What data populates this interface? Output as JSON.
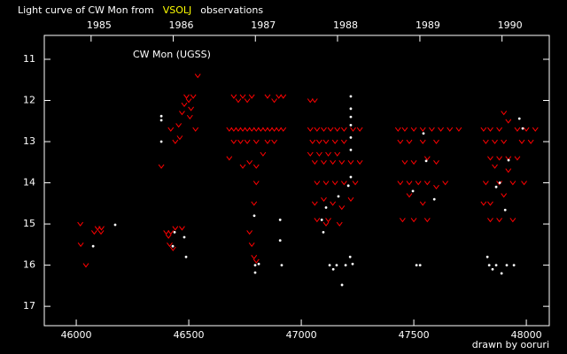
{
  "chart_data": {
    "type": "scatter",
    "title": [
      "Light curve of CW Mon from",
      "VSOLJ",
      "observations"
    ],
    "title_colors": [
      "#ffffff",
      "#ffff00",
      "#ffffff"
    ],
    "annotation": "CW Mon (UGSS)",
    "credit": "drawn by ooruri",
    "credit_color": "#33ccdd",
    "axis_color": "#ffffff",
    "xlim": [
      45858,
      48102
    ],
    "ylim": [
      10.42,
      17.47
    ],
    "y_inverted": true,
    "xticks": [
      46000,
      46500,
      47000,
      47500,
      48000
    ],
    "yticks": [
      11,
      12,
      13,
      14,
      15,
      16,
      17
    ],
    "top_ticks": [
      {
        "value": 46066,
        "label": "1985"
      },
      {
        "value": 46431,
        "label": "1986"
      },
      {
        "value": 46796,
        "label": "1987"
      },
      {
        "value": 47161,
        "label": "1988"
      },
      {
        "value": 47527,
        "label": "1989"
      },
      {
        "value": 47892,
        "label": "1990"
      }
    ],
    "series": [
      {
        "color": "#ff0000",
        "marker": "v",
        "x": [
          46018,
          46020,
          46043,
          46080,
          46095,
          46110,
          46112,
          46378,
          46400,
          46410,
          46420,
          46415,
          46430,
          46440,
          46470,
          46420,
          46440,
          46460,
          46455,
          46470,
          46480,
          46490,
          46500,
          46505,
          46510,
          46520,
          46530,
          46540,
          46700,
          46720,
          46740,
          46760,
          46780,
          46680,
          46700,
          46720,
          46740,
          46760,
          46780,
          46800,
          46820,
          46840,
          46860,
          46880,
          46900,
          46920,
          46700,
          46730,
          46760,
          46800,
          46850,
          46880,
          46680,
          46740,
          46770,
          46800,
          46830,
          46790,
          46800,
          46770,
          46780,
          46790,
          46800,
          46850,
          46880,
          46900,
          46920,
          47040,
          47060,
          47040,
          47070,
          47100,
          47130,
          47160,
          47190,
          47230,
          47260,
          47050,
          47080,
          47110,
          47150,
          47190,
          47040,
          47080,
          47120,
          47160,
          47060,
          47100,
          47140,
          47180,
          47220,
          47260,
          47070,
          47110,
          47150,
          47190,
          47240,
          47060,
          47100,
          47140,
          47180,
          47220,
          47070,
          47120,
          47170,
          47110,
          47430,
          47460,
          47500,
          47540,
          47580,
          47620,
          47660,
          47700,
          47440,
          47480,
          47540,
          47600,
          47460,
          47500,
          47560,
          47600,
          47440,
          47480,
          47520,
          47560,
          47600,
          47640,
          47480,
          47540,
          47450,
          47500,
          47560,
          47810,
          47840,
          47880,
          47960,
          48000,
          48040,
          47820,
          47860,
          47900,
          47980,
          48020,
          47840,
          47880,
          47920,
          47960,
          47860,
          47920,
          47820,
          47880,
          47940,
          47990,
          47810,
          47840,
          47900,
          47840,
          47880,
          47940,
          47900,
          47920
        ],
        "values": [
          15.0,
          15.5,
          16.0,
          15.2,
          15.1,
          15.2,
          15.1,
          13.6,
          15.2,
          15.3,
          15.2,
          15.5,
          15.6,
          15.1,
          15.1,
          12.7,
          13.0,
          12.9,
          12.6,
          12.3,
          12.1,
          11.9,
          12.0,
          12.4,
          12.2,
          11.9,
          12.7,
          11.4,
          11.9,
          12.0,
          11.9,
          12.0,
          11.9,
          12.7,
          12.7,
          12.7,
          12.7,
          12.7,
          12.7,
          12.7,
          12.7,
          12.7,
          12.7,
          12.7,
          12.7,
          12.7,
          13.0,
          13.0,
          13.0,
          13.0,
          13.0,
          13.0,
          13.4,
          13.6,
          13.5,
          13.6,
          13.3,
          14.5,
          14.0,
          15.2,
          15.5,
          15.8,
          15.9,
          11.9,
          12.0,
          11.9,
          11.9,
          12.0,
          12.0,
          12.7,
          12.7,
          12.7,
          12.7,
          12.7,
          12.7,
          12.7,
          12.7,
          13.0,
          13.0,
          13.0,
          13.0,
          13.0,
          13.3,
          13.3,
          13.3,
          13.3,
          13.5,
          13.5,
          13.5,
          13.5,
          13.5,
          13.5,
          14.0,
          14.0,
          14.0,
          14.0,
          14.0,
          14.5,
          14.4,
          14.5,
          14.6,
          14.4,
          14.9,
          14.9,
          15.0,
          15.0,
          12.7,
          12.7,
          12.7,
          12.7,
          12.7,
          12.7,
          12.7,
          12.7,
          13.0,
          13.0,
          13.0,
          13.0,
          13.5,
          13.5,
          13.4,
          13.5,
          14.0,
          14.0,
          14.0,
          14.0,
          14.1,
          14.0,
          14.3,
          14.5,
          14.9,
          14.9,
          14.9,
          12.7,
          12.7,
          12.7,
          12.7,
          12.7,
          12.7,
          13.0,
          13.0,
          13.0,
          13.0,
          13.0,
          13.4,
          13.4,
          13.4,
          13.4,
          13.6,
          13.7,
          14.0,
          14.0,
          14.0,
          14.0,
          14.5,
          14.5,
          14.3,
          14.9,
          14.9,
          14.9,
          12.3,
          12.5
        ]
      },
      {
        "color": "#ffffff",
        "marker": "dot",
        "x": [
          46173,
          46075,
          46378,
          46378,
          46378,
          46437,
          46429,
          46480,
          46488,
          46791,
          46795,
          46795,
          46811,
          46906,
          46913,
          46906,
          47091,
          47098,
          47110,
          47126,
          47142,
          47157,
          47181,
          47197,
          47217,
          47228,
          47209,
          47220,
          47220,
          47220,
          47220,
          47220,
          47220,
          47220,
          47165,
          47496,
          47512,
          47528,
          47543,
          47555,
          47591,
          47827,
          47835,
          47850,
          47866,
          47890,
          47913,
          47945,
          47866,
          47882,
          47921,
          47969,
          47984,
          47906
        ],
        "values": [
          15.02,
          15.54,
          12.38,
          12.48,
          13.0,
          15.2,
          15.54,
          15.32,
          15.8,
          14.8,
          16.0,
          16.18,
          15.97,
          14.9,
          16.0,
          15.4,
          14.9,
          15.2,
          14.6,
          16.0,
          16.1,
          16.0,
          16.48,
          16.0,
          15.8,
          15.97,
          14.07,
          13.86,
          11.9,
          12.2,
          12.4,
          12.6,
          12.9,
          13.2,
          14.33,
          14.2,
          16.0,
          16.0,
          12.8,
          13.47,
          14.4,
          15.8,
          16.0,
          16.1,
          16.0,
          16.2,
          16.0,
          16.0,
          14.1,
          14.0,
          13.45,
          12.44,
          12.68,
          14.66
        ]
      }
    ]
  }
}
